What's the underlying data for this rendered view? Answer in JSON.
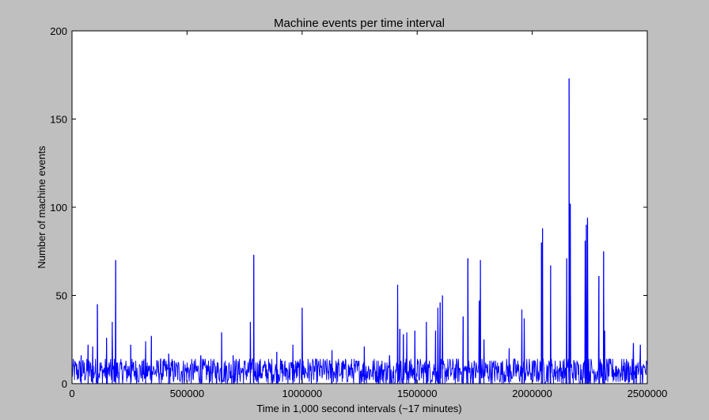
{
  "chart_data": {
    "type": "line",
    "title": "Machine events per time interval",
    "xlabel": "Time in 1,000 second intervals (~17 minutes)",
    "ylabel": "Number of machine events",
    "xlim": [
      0,
      2500000
    ],
    "ylim": [
      0,
      200
    ],
    "xticks": [
      0,
      500000,
      1000000,
      1500000,
      2000000,
      2500000
    ],
    "xtick_labels": [
      "0",
      "500000",
      "1000000",
      "1500000",
      "2000000",
      "2500000"
    ],
    "yticks": [
      0,
      50,
      100,
      150,
      200
    ],
    "ytick_labels": [
      "0",
      "50",
      "100",
      "150",
      "200"
    ],
    "grid": false,
    "line_color": "#0000ff",
    "baseline_range": [
      0,
      14
    ],
    "spikes": [
      {
        "x": 40000,
        "y": 16
      },
      {
        "x": 70000,
        "y": 22
      },
      {
        "x": 90000,
        "y": 21
      },
      {
        "x": 110000,
        "y": 45
      },
      {
        "x": 150000,
        "y": 26
      },
      {
        "x": 175000,
        "y": 35
      },
      {
        "x": 190000,
        "y": 70
      },
      {
        "x": 255000,
        "y": 22
      },
      {
        "x": 320000,
        "y": 24
      },
      {
        "x": 345000,
        "y": 27
      },
      {
        "x": 420000,
        "y": 17
      },
      {
        "x": 560000,
        "y": 16
      },
      {
        "x": 650000,
        "y": 29
      },
      {
        "x": 700000,
        "y": 16
      },
      {
        "x": 775000,
        "y": 35
      },
      {
        "x": 790000,
        "y": 73
      },
      {
        "x": 890000,
        "y": 18
      },
      {
        "x": 960000,
        "y": 22
      },
      {
        "x": 1000000,
        "y": 43
      },
      {
        "x": 1130000,
        "y": 19
      },
      {
        "x": 1270000,
        "y": 21
      },
      {
        "x": 1380000,
        "y": 16
      },
      {
        "x": 1415000,
        "y": 56
      },
      {
        "x": 1425000,
        "y": 31
      },
      {
        "x": 1440000,
        "y": 28
      },
      {
        "x": 1455000,
        "y": 29
      },
      {
        "x": 1490000,
        "y": 30
      },
      {
        "x": 1540000,
        "y": 35
      },
      {
        "x": 1580000,
        "y": 30
      },
      {
        "x": 1590000,
        "y": 43
      },
      {
        "x": 1600000,
        "y": 46
      },
      {
        "x": 1610000,
        "y": 50
      },
      {
        "x": 1700000,
        "y": 38
      },
      {
        "x": 1720000,
        "y": 71
      },
      {
        "x": 1770000,
        "y": 47
      },
      {
        "x": 1775000,
        "y": 70
      },
      {
        "x": 1790000,
        "y": 25
      },
      {
        "x": 1900000,
        "y": 20
      },
      {
        "x": 1955000,
        "y": 42
      },
      {
        "x": 1965000,
        "y": 37
      },
      {
        "x": 2040000,
        "y": 80
      },
      {
        "x": 2045000,
        "y": 88
      },
      {
        "x": 2080000,
        "y": 67
      },
      {
        "x": 2150000,
        "y": 71
      },
      {
        "x": 2160000,
        "y": 173
      },
      {
        "x": 2165000,
        "y": 102
      },
      {
        "x": 2230000,
        "y": 81
      },
      {
        "x": 2235000,
        "y": 90
      },
      {
        "x": 2240000,
        "y": 94
      },
      {
        "x": 2290000,
        "y": 61
      },
      {
        "x": 2310000,
        "y": 75
      },
      {
        "x": 2315000,
        "y": 30
      },
      {
        "x": 2440000,
        "y": 23
      },
      {
        "x": 2470000,
        "y": 22
      }
    ]
  }
}
